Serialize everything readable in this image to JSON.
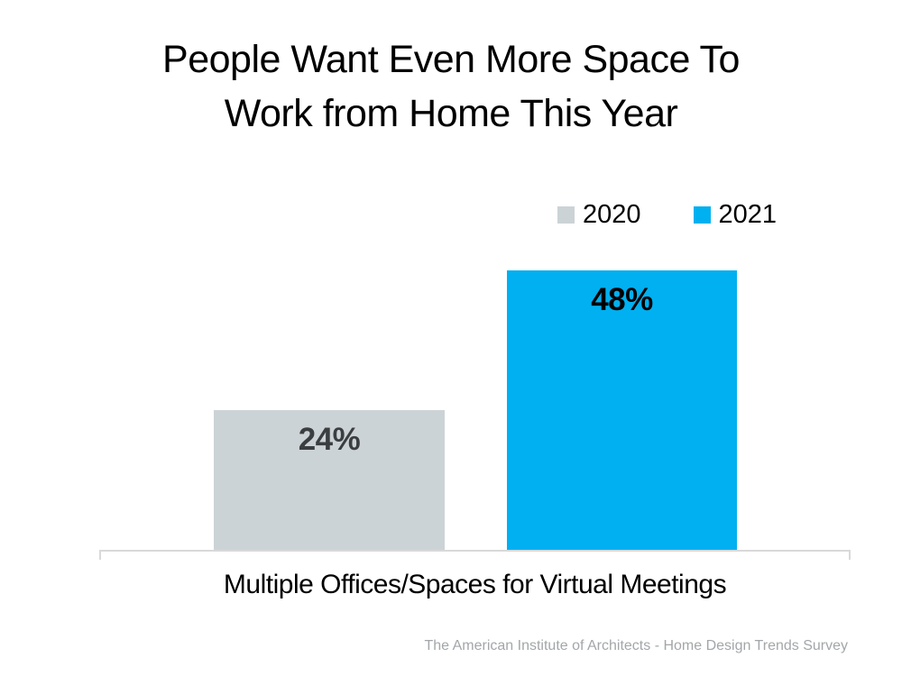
{
  "chart_data": {
    "type": "bar",
    "title": "People Want Even More Space To Work from Home This Year",
    "title_lines": [
      "People Want Even More Space To",
      "Work from Home This Year"
    ],
    "categories": [
      "Multiple Offices/Spaces for Virtual Meetings"
    ],
    "series": [
      {
        "name": "2020",
        "values": [
          24
        ],
        "data_labels": [
          "24%"
        ],
        "color": "#ccd3d6",
        "label_color": "#3b3e40"
      },
      {
        "name": "2021",
        "values": [
          48
        ],
        "data_labels": [
          "48%"
        ],
        "color": "#00b0f0",
        "label_color": "#000000"
      }
    ],
    "ylim": [
      0,
      50
    ],
    "grid": false,
    "y_axis_visible": false,
    "legend_position": "top-right",
    "axis_line_color": "#d9d9d9",
    "source": "The American Institute of Architects - Home Design Trends Survey"
  }
}
